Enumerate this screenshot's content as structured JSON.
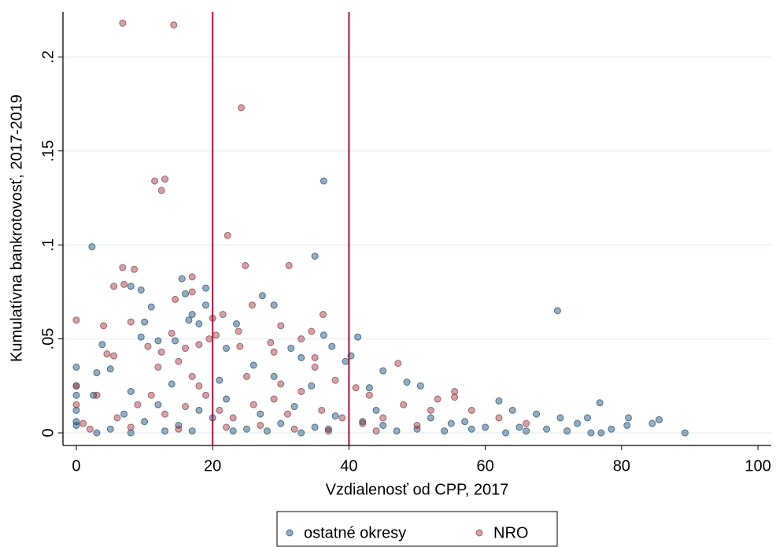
{
  "chart_data": {
    "type": "scatter",
    "xlabel": "Vzdialenosť od CPP, 2017",
    "ylabel": "Kumulatívna bankrotovosť, 2017-2019",
    "xlim": [
      -1.96,
      101.96
    ],
    "ylim": [
      -0.0067,
      0.224
    ],
    "xticks": [
      0,
      20,
      40,
      60,
      80,
      100
    ],
    "yticks": [
      0,
      {
        "value": 0.05,
        "label": ".05"
      },
      {
        "value": 0.1,
        "label": ".1"
      },
      {
        "value": 0.15,
        "label": ".15"
      },
      {
        "value": 0.2,
        "label": ".2"
      }
    ],
    "grid": true,
    "xlines": [
      20,
      40
    ],
    "xline_color": "#a3163c",
    "legend": "bottom",
    "series": [
      {
        "name": "ostatné okresy",
        "color": "#1a476f",
        "x": [
          2.3,
          36.3,
          35,
          15.5,
          19,
          16,
          19,
          70.6,
          27.3,
          29,
          11,
          8,
          9.5,
          17,
          16.5,
          18,
          23.5,
          36.3,
          41.3,
          10,
          9.5,
          12,
          14.5,
          3.8,
          37.5,
          22,
          31.5,
          39.5,
          40.3,
          0,
          0,
          0,
          0,
          0,
          0,
          45,
          48.5,
          50.5,
          2.5,
          5,
          3,
          76.8,
          62,
          64,
          67.5,
          71,
          81,
          85.5,
          89.3,
          84.5,
          80.8,
          78.5,
          77,
          75.5,
          73.5,
          72,
          60,
          55,
          50,
          45,
          42,
          35,
          30,
          25,
          20,
          15,
          10,
          5,
          7,
          12,
          18,
          22,
          27,
          32,
          38,
          44,
          52,
          57,
          65,
          69,
          3,
          8,
          13,
          17,
          23,
          28,
          33,
          37,
          47,
          54,
          58,
          63,
          66,
          75,
          26,
          33,
          29,
          21,
          14,
          8,
          43,
          34.5
        ],
        "values": [
          0.099,
          0.134,
          0.094,
          0.082,
          0.077,
          0.074,
          0.068,
          0.065,
          0.073,
          0.068,
          0.067,
          0.078,
          0.076,
          0.063,
          0.06,
          0.058,
          0.058,
          0.052,
          0.051,
          0.059,
          0.051,
          0.049,
          0.049,
          0.047,
          0.046,
          0.045,
          0.045,
          0.038,
          0.041,
          0.035,
          0.025,
          0.02,
          0.012,
          0.006,
          0.004,
          0.033,
          0.027,
          0.025,
          0.02,
          0.034,
          0.032,
          0.016,
          0.017,
          0.012,
          0.01,
          0.008,
          0.008,
          0.007,
          0,
          0.005,
          0.004,
          0.002,
          0,
          0,
          0.005,
          0.001,
          0.003,
          0.005,
          0.002,
          0.004,
          0.006,
          0.003,
          0.005,
          0.002,
          0.008,
          0.004,
          0.006,
          0.002,
          0.01,
          0.015,
          0.012,
          0.018,
          0.01,
          0.014,
          0.009,
          0.012,
          0.008,
          0.006,
          0.003,
          0.002,
          0,
          0,
          0.001,
          0.001,
          0.001,
          0.001,
          0,
          0.002,
          0.001,
          0.001,
          0.002,
          0,
          0.001,
          0.008,
          0.036,
          0.04,
          0.03,
          0.028,
          0.026,
          0.022,
          0.024,
          0.025
        ]
      },
      {
        "name": "NRO",
        "color": "#90353b",
        "x": [
          6.8,
          14.3,
          24.2,
          11.5,
          13,
          12.5,
          22.2,
          24.8,
          31.2,
          6.8,
          8.5,
          0,
          7,
          5.5,
          17,
          14.5,
          17,
          25.8,
          21.5,
          36.2,
          8,
          20,
          30,
          4,
          34.5,
          14,
          23.8,
          33,
          20.5,
          19.5,
          28.5,
          24,
          18,
          16,
          4.5,
          5.5,
          10.5,
          12.5,
          15,
          29,
          35,
          47.2,
          38,
          41,
          43,
          48,
          52,
          55.5,
          55.5,
          53,
          58,
          62,
          66,
          3,
          0,
          0,
          1,
          2,
          6,
          9,
          11,
          13,
          16,
          19,
          21,
          23,
          26,
          29,
          31,
          33,
          36,
          39,
          42,
          45,
          50,
          8,
          15,
          22,
          27,
          32,
          37,
          44,
          25,
          18,
          30,
          35,
          12,
          17
        ],
        "values": [
          0.218,
          0.217,
          0.173,
          0.134,
          0.135,
          0.129,
          0.105,
          0.089,
          0.089,
          0.088,
          0.087,
          0.06,
          0.079,
          0.078,
          0.083,
          0.071,
          0.075,
          0.068,
          0.063,
          0.063,
          0.059,
          0.061,
          0.057,
          0.057,
          0.054,
          0.053,
          0.054,
          0.05,
          0.052,
          0.05,
          0.048,
          0.046,
          0.047,
          0.045,
          0.042,
          0.041,
          0.046,
          0.043,
          0.038,
          0.043,
          0.04,
          0.037,
          0.028,
          0.024,
          0.02,
          0.015,
          0.012,
          0.022,
          0.019,
          0.018,
          0.012,
          0.008,
          0.005,
          0.02,
          0.025,
          0.015,
          0.005,
          0.002,
          0.008,
          0.015,
          0.02,
          0.01,
          0.014,
          0.02,
          0.012,
          0.008,
          0.015,
          0.018,
          0.01,
          0.022,
          0.012,
          0.008,
          0.005,
          0.008,
          0.004,
          0.003,
          0.002,
          0.003,
          0.004,
          0.002,
          0.001,
          0.001,
          0.03,
          0.025,
          0.026,
          0.035,
          0.035,
          0.03
        ]
      }
    ]
  }
}
